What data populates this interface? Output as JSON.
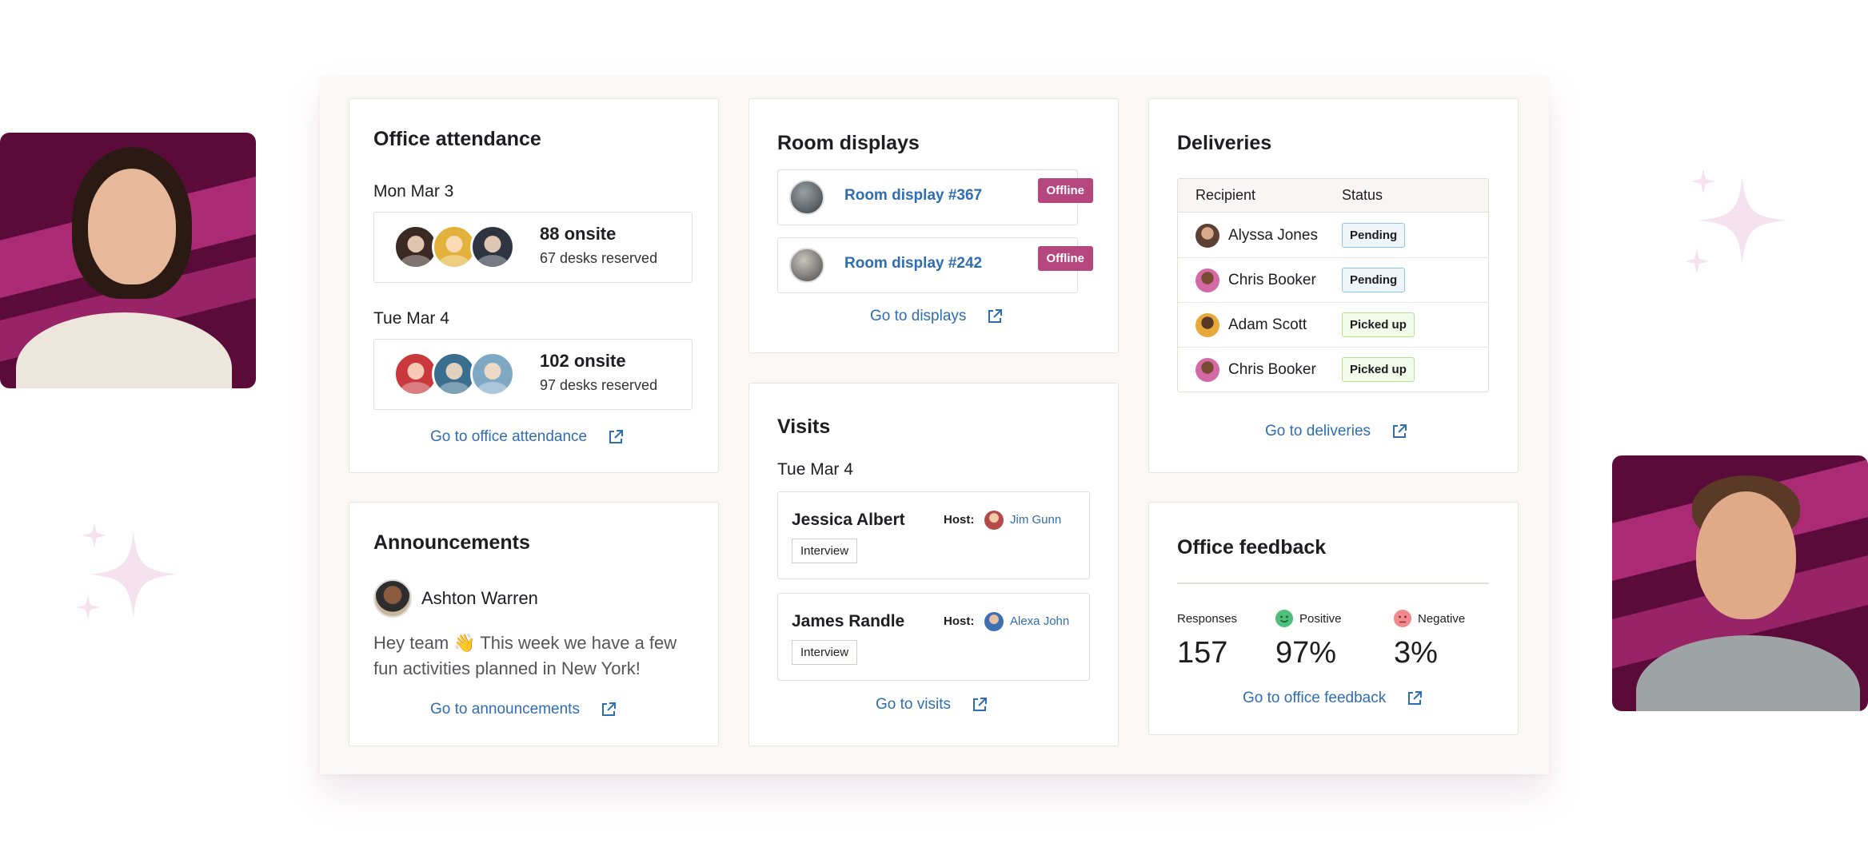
{
  "attendance": {
    "title": "Office attendance",
    "days": [
      {
        "date": "Mon Mar 3",
        "onsite": "88 onsite",
        "desks": "67 desks reserved"
      },
      {
        "date": "Tue Mar 4",
        "onsite": "102 onsite",
        "desks": "97 desks reserved"
      }
    ],
    "link": "Go to office attendance"
  },
  "room_displays": {
    "title": "Room displays",
    "items": [
      {
        "name": "Room display #367",
        "status": "Offline"
      },
      {
        "name": "Room display #242",
        "status": "Offline"
      }
    ],
    "link": "Go to displays"
  },
  "deliveries": {
    "title": "Deliveries",
    "columns": [
      "Recipient",
      "Status"
    ],
    "rows": [
      {
        "recipient": "Alyssa Jones",
        "status": "Pending"
      },
      {
        "recipient": "Chris Booker",
        "status": "Pending"
      },
      {
        "recipient": "Adam Scott",
        "status": "Picked up"
      },
      {
        "recipient": "Chris Booker",
        "status": "Picked up"
      }
    ],
    "link": "Go to deliveries"
  },
  "announcements": {
    "title": "Announcements",
    "author": "Ashton Warren",
    "body": "Hey team 👋 This week we have a few fun activities planned in New York!",
    "link": "Go to announcements"
  },
  "visits": {
    "title": "Visits",
    "date": "Tue Mar 4",
    "host_label": "Host:",
    "items": [
      {
        "visitor": "Jessica Albert",
        "host": "Jim Gunn",
        "type": "Interview"
      },
      {
        "visitor": "James Randle",
        "host": "Alexa John",
        "type": "Interview"
      }
    ],
    "link": "Go to visits"
  },
  "feedback": {
    "title": "Office feedback",
    "responses_label": "Responses",
    "responses": "157",
    "positive_label": "Positive",
    "positive": "97%",
    "negative_label": "Negative",
    "negative": "3%",
    "link": "Go to office feedback"
  },
  "colors": {
    "accent": "#2f6db2",
    "offline": "#b5477e",
    "brand_bg": "#5a0b3a"
  }
}
